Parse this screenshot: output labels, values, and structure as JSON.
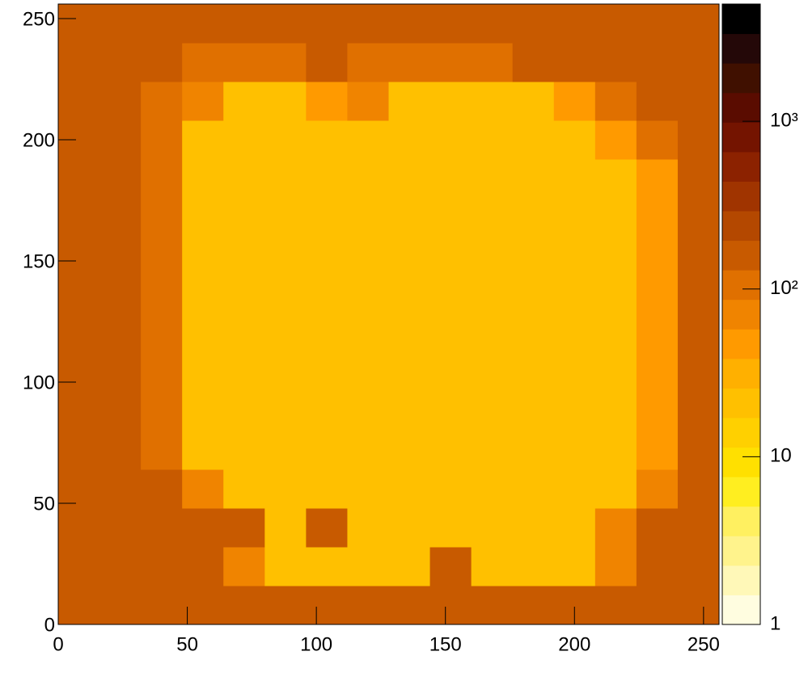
{
  "chart_data": {
    "type": "heatmap",
    "xlim": [
      0,
      256
    ],
    "ylim": [
      0,
      256
    ],
    "xticks": [
      0,
      50,
      100,
      150,
      200,
      250
    ],
    "yticks": [
      0,
      50,
      100,
      150,
      200,
      250
    ],
    "xbins": [
      0,
      16,
      32,
      48,
      64,
      80,
      96,
      112,
      128,
      144,
      160,
      176,
      192,
      208,
      224,
      240,
      256
    ],
    "ybins": [
      0,
      16,
      32,
      48,
      64,
      80,
      96,
      112,
      128,
      144,
      160,
      176,
      192,
      208,
      224,
      240,
      256
    ],
    "z": [
      [
        130,
        130,
        130,
        130,
        130,
        130,
        130,
        130,
        130,
        130,
        130,
        130,
        130,
        130,
        130,
        130
      ],
      [
        130,
        130,
        130,
        130,
        60,
        25,
        25,
        25,
        25,
        150,
        25,
        25,
        25,
        60,
        130,
        130
      ],
      [
        130,
        130,
        130,
        130,
        150,
        25,
        150,
        25,
        25,
        25,
        25,
        25,
        25,
        60,
        130,
        130
      ],
      [
        130,
        130,
        130,
        60,
        25,
        25,
        25,
        25,
        25,
        25,
        25,
        25,
        25,
        25,
        60,
        130
      ],
      [
        130,
        130,
        100,
        25,
        25,
        25,
        25,
        25,
        25,
        25,
        25,
        25,
        25,
        25,
        40,
        130
      ],
      [
        130,
        130,
        100,
        25,
        25,
        25,
        25,
        25,
        25,
        25,
        25,
        25,
        25,
        25,
        40,
        130
      ],
      [
        130,
        130,
        100,
        25,
        25,
        25,
        25,
        25,
        25,
        25,
        25,
        25,
        25,
        25,
        40,
        130
      ],
      [
        130,
        130,
        100,
        25,
        25,
        25,
        25,
        25,
        25,
        25,
        25,
        25,
        25,
        25,
        40,
        130
      ],
      [
        130,
        130,
        100,
        25,
        25,
        25,
        25,
        25,
        25,
        25,
        25,
        25,
        25,
        25,
        40,
        130
      ],
      [
        130,
        130,
        100,
        25,
        25,
        25,
        25,
        25,
        25,
        25,
        25,
        25,
        25,
        25,
        40,
        130
      ],
      [
        130,
        130,
        100,
        25,
        25,
        25,
        25,
        25,
        25,
        25,
        25,
        25,
        25,
        25,
        40,
        130
      ],
      [
        130,
        130,
        100,
        25,
        25,
        25,
        25,
        25,
        25,
        25,
        25,
        25,
        25,
        25,
        40,
        130
      ],
      [
        130,
        130,
        110,
        25,
        25,
        25,
        25,
        25,
        25,
        25,
        25,
        25,
        25,
        40,
        100,
        130
      ],
      [
        130,
        130,
        120,
        60,
        25,
        25,
        50,
        60,
        25,
        25,
        25,
        25,
        40,
        100,
        130,
        130
      ],
      [
        130,
        130,
        130,
        120,
        110,
        110,
        130,
        120,
        110,
        110,
        120,
        130,
        130,
        130,
        130,
        130
      ],
      [
        130,
        130,
        130,
        130,
        130,
        130,
        130,
        130,
        130,
        130,
        130,
        130,
        130,
        130,
        130,
        130
      ]
    ],
    "zlog": true,
    "zlim": [
      1,
      5000
    ],
    "zticks": [
      1,
      10,
      {
        "value": 100,
        "label": "10²"
      },
      {
        "value": 1000,
        "label": "10³"
      }
    ],
    "palette": [
      "#fffde0",
      "#fff8b8",
      "#fff38c",
      "#fff060",
      "#ffee20",
      "#ffe000",
      "#ffd000",
      "#ffc000",
      "#ffb000",
      "#ff9a00",
      "#f08400",
      "#e07000",
      "#c85a00",
      "#b44800",
      "#a03400",
      "#8c2200",
      "#741400",
      "#5a0c00",
      "#401000",
      "#240808",
      "#000000"
    ]
  }
}
